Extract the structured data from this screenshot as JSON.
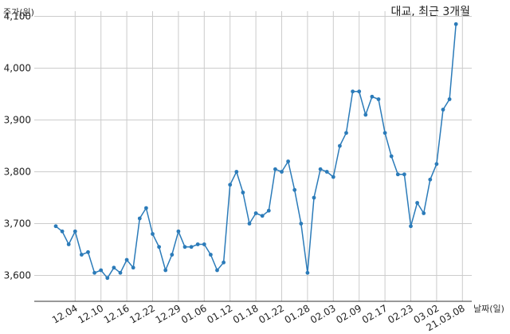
{
  "chart_data": {
    "type": "line",
    "title": "대교, 최근 3개월",
    "ylabel": "주가(원)",
    "xlabel": "날짜(일)",
    "ylim": [
      3550,
      4110
    ],
    "y_ticks": [
      3600,
      3700,
      3800,
      3900,
      4000,
      4100
    ],
    "y_tick_labels": [
      "3,600",
      "3,700",
      "3,800",
      "3,900",
      "4,000",
      "4,100"
    ],
    "x_tick_labels": [
      "12.04",
      "12.10",
      "12.16",
      "12.22",
      "12.29",
      "01.06",
      "01.12",
      "01.18",
      "01.22",
      "01.28",
      "02.03",
      "02.09",
      "02.17",
      "02.23",
      "03.02",
      "21.03.08"
    ],
    "x_tick_indices": [
      3,
      7,
      11,
      15,
      19,
      23,
      27,
      31,
      35,
      39,
      43,
      47,
      51,
      55,
      59,
      63
    ],
    "grid": true,
    "series_color": "#2b7bb9",
    "series": [
      {
        "values": [
          3695,
          3685,
          3660,
          3685,
          3640,
          3645,
          3605,
          3610,
          3595,
          3615,
          3605,
          3630,
          3615,
          3710,
          3730,
          3680,
          3655,
          3610,
          3640,
          3685,
          3655,
          3655,
          3660,
          3660,
          3640,
          3610,
          3625,
          3775,
          3800,
          3760,
          3700,
          3720,
          3715,
          3725,
          3805,
          3800,
          3820,
          3765,
          3700,
          3605,
          3750,
          3805,
          3800,
          3790,
          3850,
          3875,
          3955,
          3955,
          3910,
          3945,
          3940,
          3875,
          3830,
          3795,
          3795,
          3695,
          3740,
          3720,
          3785,
          3815,
          3920,
          3940,
          4085
        ]
      }
    ]
  }
}
